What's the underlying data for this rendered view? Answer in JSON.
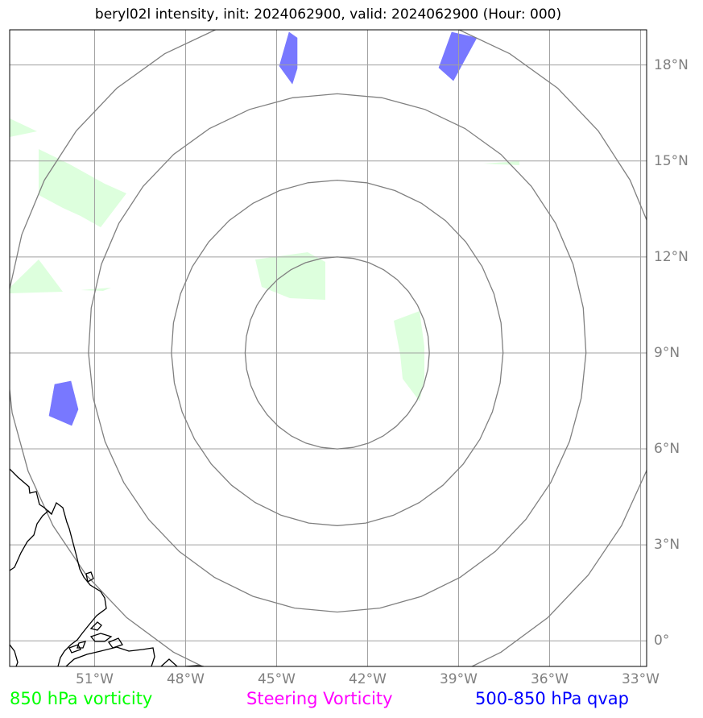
{
  "title": "beryl02l intensity, init: 2024062900, valid: 2024062900 (Hour: 000)",
  "x_ticks": [
    {
      "label": "51°W",
      "lon": -51
    },
    {
      "label": "48°W",
      "lon": -48
    },
    {
      "label": "45°W",
      "lon": -45
    },
    {
      "label": "42°W",
      "lon": -42
    },
    {
      "label": "39°W",
      "lon": -39
    },
    {
      "label": "36°W",
      "lon": -36
    },
    {
      "label": "33°W",
      "lon": -33
    }
  ],
  "y_ticks": [
    {
      "label": "18°N",
      "lat": 18
    },
    {
      "label": "15°N",
      "lat": 15
    },
    {
      "label": "12°N",
      "lat": 12
    },
    {
      "label": "9°N",
      "lat": 9
    },
    {
      "label": "6°N",
      "lat": 6
    },
    {
      "label": "3°N",
      "lat": 3
    },
    {
      "label": "0°",
      "lat": 0
    }
  ],
  "legend": [
    {
      "label": "850 hPa vorticity",
      "color": "#00ff00"
    },
    {
      "label": "Steering Vorticity",
      "color": "#ff00ff"
    },
    {
      "label": "500-850 hPa qvap",
      "color": "#0000ff"
    }
  ],
  "map": {
    "lon_range": [
      -53.8,
      -32.8
    ],
    "lat_range": [
      -0.8,
      19.1
    ],
    "center": {
      "lon": -43,
      "lat": 9
    },
    "range_rings_deg": [
      3,
      5.4,
      8.1,
      10.8
    ],
    "colors": {
      "grid": "#a0a0a0",
      "rings": "#808080",
      "coast": "#000000",
      "vorticity_fill": "#ddffdd",
      "qvap_fill": "#7878ff"
    }
  }
}
